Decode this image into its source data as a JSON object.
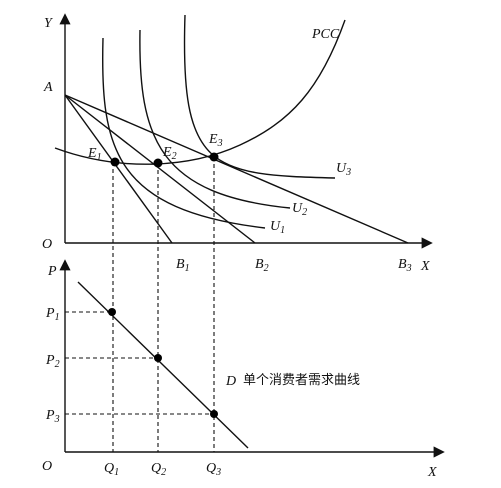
{
  "top": {
    "y_axis": "Y",
    "x_axis": "X",
    "origin": "O",
    "point_a": "A",
    "pcc": "PCC",
    "budget": [
      {
        "main": "B",
        "sub": "1"
      },
      {
        "main": "B",
        "sub": "2"
      },
      {
        "main": "B",
        "sub": "3"
      }
    ],
    "equilibria": [
      {
        "main": "E",
        "sub": "1"
      },
      {
        "main": "E",
        "sub": "2"
      },
      {
        "main": "E",
        "sub": "3"
      }
    ],
    "indifference": [
      {
        "main": "U",
        "sub": "1"
      },
      {
        "main": "U",
        "sub": "2"
      },
      {
        "main": "U",
        "sub": "3"
      }
    ]
  },
  "bottom": {
    "y_axis": "P",
    "x_axis": "X",
    "origin": "O",
    "prices": [
      {
        "main": "P",
        "sub": "1"
      },
      {
        "main": "P",
        "sub": "2"
      },
      {
        "main": "P",
        "sub": "3"
      }
    ],
    "quantities": [
      {
        "main": "Q",
        "sub": "1"
      },
      {
        "main": "Q",
        "sub": "2"
      },
      {
        "main": "Q",
        "sub": "3"
      }
    ],
    "demand": "D",
    "demand_caption": "单个消费者需求曲线"
  }
}
